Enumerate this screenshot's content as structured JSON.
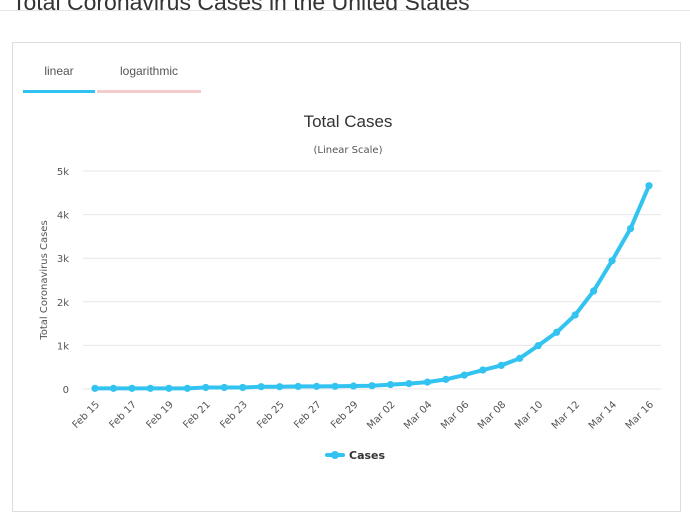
{
  "page": {
    "heading": "Total Coronavirus Cases in the United States"
  },
  "tabs": [
    {
      "label": "linear",
      "active": true
    },
    {
      "label": "logarithmic",
      "active": false
    }
  ],
  "colors": {
    "series": "#33c3f0",
    "grid": "#e6e6e6",
    "active_tab": "#2fc1f1",
    "inactive_tab": "#f5cccc"
  },
  "chart_data": {
    "type": "line",
    "title": "Total Cases",
    "subtitle": "(Linear Scale)",
    "ylabel": "Total Coronavirus Cases",
    "xlabel": "",
    "ylim": [
      0,
      5000
    ],
    "yticks": [
      0,
      1000,
      2000,
      3000,
      4000,
      5000
    ],
    "ytick_labels": [
      "0",
      "1k",
      "2k",
      "3k",
      "4k",
      "5k"
    ],
    "x": [
      "Feb 15",
      "Feb 16",
      "Feb 17",
      "Feb 18",
      "Feb 19",
      "Feb 20",
      "Feb 21",
      "Feb 22",
      "Feb 23",
      "Feb 24",
      "Feb 25",
      "Feb 26",
      "Feb 27",
      "Feb 28",
      "Feb 29",
      "Mar 01",
      "Mar 02",
      "Mar 03",
      "Mar 04",
      "Mar 05",
      "Mar 06",
      "Mar 07",
      "Mar 08",
      "Mar 09",
      "Mar 10",
      "Mar 11",
      "Mar 12",
      "Mar 13",
      "Mar 14",
      "Mar 15",
      "Mar 16"
    ],
    "xtick_labels": [
      "Feb 15",
      "Feb 17",
      "Feb 19",
      "Feb 21",
      "Feb 23",
      "Feb 25",
      "Feb 27",
      "Feb 29",
      "Mar 02",
      "Mar 04",
      "Mar 06",
      "Mar 08",
      "Mar 10",
      "Mar 12",
      "Mar 14",
      "Mar 16"
    ],
    "series": [
      {
        "name": "Cases",
        "values": [
          15,
          15,
          15,
          15,
          15,
          15,
          35,
          35,
          35,
          53,
          53,
          59,
          60,
          62,
          68,
          75,
          100,
          124,
          158,
          221,
          319,
          435,
          541,
          704,
          994,
          1301,
          1697,
          2247,
          2943,
          3680,
          4663
        ]
      }
    ],
    "grid": true,
    "legend": "bottom-center"
  }
}
